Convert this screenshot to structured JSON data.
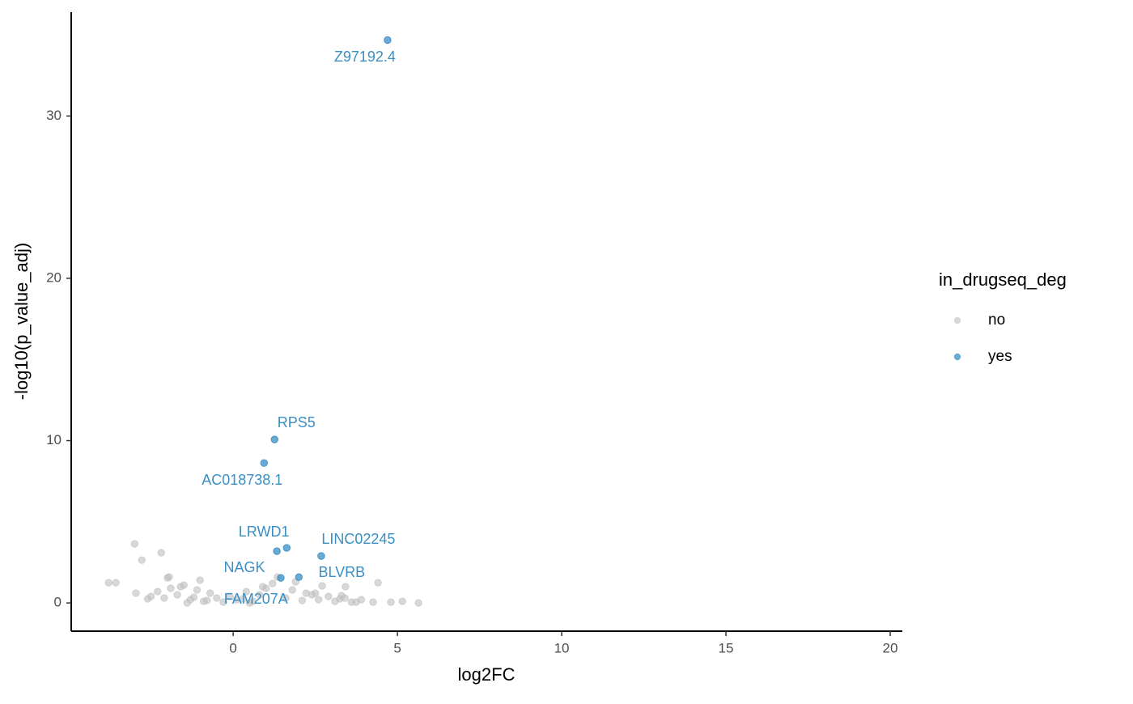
{
  "chart_data": {
    "type": "scatter",
    "xlabel": "log2FC",
    "ylabel": "-log10(p_value_adj)",
    "xlim": [
      -4.93,
      20.37
    ],
    "ylim": [
      -1.74,
      36.4
    ],
    "xticks": [
      0,
      5,
      10,
      15,
      20
    ],
    "yticks": [
      0,
      10,
      20,
      30
    ],
    "legend_title": "in_drugseq_deg",
    "legend_position": "right",
    "series": [
      {
        "name": "no",
        "color": "#bebebe",
        "x": [
          -3.0,
          -2.78,
          -2.19,
          -3.79,
          -3.57,
          -2.96,
          -1.01,
          -2.0,
          1.35,
          2.71,
          3.42,
          4.41,
          4.26,
          4.8,
          5.15,
          5.64,
          3.74,
          3.25,
          2.22,
          0.3,
          -2.5,
          -2.3,
          -2.1,
          -1.9,
          -1.7,
          -1.5,
          -1.3,
          -1.1,
          -0.9,
          -0.7,
          -0.5,
          -0.3,
          -0.1,
          0.1,
          0.4,
          0.6,
          0.8,
          1.0,
          1.2,
          1.6,
          1.8,
          2.1,
          2.4,
          2.6,
          2.9,
          3.1,
          3.4,
          3.6,
          3.9,
          -1.95,
          -1.6,
          -1.2,
          -0.8,
          0.9,
          1.9,
          2.5,
          3.3,
          -2.6,
          -1.4,
          0.5
        ],
        "values": [
          3.64,
          2.64,
          3.09,
          1.25,
          1.25,
          0.6,
          1.4,
          1.54,
          1.59,
          1.05,
          1.0,
          1.25,
          0.05,
          0.05,
          0.1,
          0,
          0.05,
          0.25,
          0.6,
          0.25,
          0.4,
          0.7,
          0.3,
          0.9,
          0.5,
          1.1,
          0.2,
          0.8,
          0.1,
          0.6,
          0.3,
          0.05,
          0.4,
          0.2,
          0.7,
          0.1,
          0.5,
          0.9,
          1.2,
          0.3,
          0.8,
          0.15,
          0.5,
          0.2,
          0.4,
          0.1,
          0.3,
          0.05,
          0.2,
          1.6,
          1.0,
          0.35,
          0.15,
          1.0,
          1.3,
          0.6,
          0.45,
          0.25,
          0.0,
          0.0
        ]
      },
      {
        "name": "yes",
        "color": "#3a8fc4",
        "x": [
          4.7,
          1.26,
          0.94,
          1.33,
          2.68,
          1.45,
          2.0,
          1.63
        ],
        "values": [
          34.68,
          10.07,
          8.62,
          3.19,
          2.89,
          1.54,
          1.59,
          3.39
        ],
        "labels": [
          "Z97192.4",
          "RPS5",
          "AC018738.1",
          "LRWD1",
          "LINC02245",
          "NAGK",
          "BLVRB",
          "FAM207A"
        ]
      }
    ]
  }
}
